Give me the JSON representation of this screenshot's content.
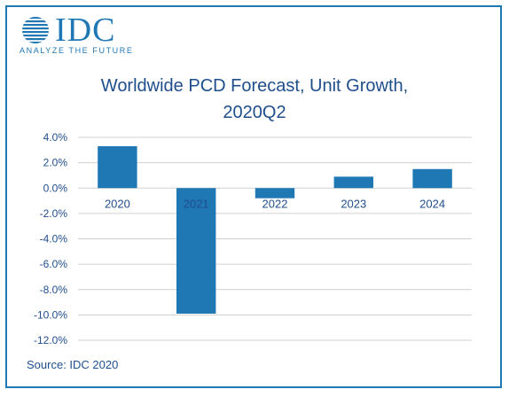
{
  "logo": {
    "wordmark": "IDC",
    "tagline": "ANALYZE THE FUTURE"
  },
  "title_line1": "Worldwide PCD Forecast, Unit Growth,",
  "title_line2": "2020Q2",
  "source": "Source: IDC 2020",
  "colors": {
    "bar": "#1f77b4",
    "grid": "#d0d0d0",
    "text": "#1f4e8c",
    "brand": "#1f77b4"
  },
  "chart_data": {
    "type": "bar",
    "categories": [
      "2020",
      "2021",
      "2022",
      "2023",
      "2024"
    ],
    "values": [
      3.3,
      -9.9,
      -0.8,
      0.9,
      1.5
    ],
    "ylim": [
      -12,
      4
    ],
    "yticks": [
      4,
      2,
      0,
      -2,
      -4,
      -6,
      -8,
      -10,
      -12
    ],
    "ytick_labels": [
      "4.0%",
      "2.0%",
      "0.0%",
      "-2.0%",
      "-4.0%",
      "-6.0%",
      "-8.0%",
      "-10.0%",
      "-12.0%"
    ],
    "grid": true,
    "category_labels_position": "just below zero line"
  }
}
